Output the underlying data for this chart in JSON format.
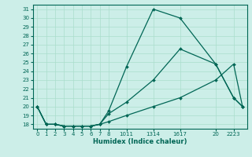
{
  "xlabel": "Humidex (Indice chaleur)",
  "bg_color": "#cceee8",
  "grid_color": "#aaddcc",
  "line_color": "#006655",
  "ylim": [
    17.5,
    31.5
  ],
  "xlim": [
    -0.5,
    23.5
  ],
  "yticks": [
    18,
    19,
    20,
    21,
    22,
    23,
    24,
    25,
    26,
    27,
    28,
    29,
    30,
    31
  ],
  "x_tick_positions": [
    0,
    1,
    2,
    3,
    4,
    5,
    6,
    7,
    8,
    10,
    13,
    16,
    20,
    22
  ],
  "x_tick_labels": [
    "0",
    "1",
    "2",
    "3",
    "4",
    "5",
    "6",
    "7",
    "8",
    "1011",
    "1314",
    "1617",
    "20",
    "2223"
  ],
  "line1_x": [
    0,
    1,
    2,
    3,
    4,
    5,
    6,
    7,
    8,
    10,
    13,
    16,
    20,
    22,
    23
  ],
  "line1_y": [
    20,
    18,
    18,
    17.8,
    17.8,
    17.8,
    17.8,
    18,
    19.5,
    24.5,
    31,
    30,
    24.8,
    21,
    20
  ],
  "line2_x": [
    0,
    1,
    2,
    3,
    4,
    5,
    6,
    7,
    8,
    10,
    13,
    16,
    20,
    22,
    23
  ],
  "line2_y": [
    20,
    18,
    18,
    17.8,
    17.8,
    17.8,
    17.8,
    18,
    19.2,
    20.5,
    23,
    26.5,
    24.8,
    21,
    20
  ],
  "line3_x": [
    0,
    1,
    2,
    3,
    4,
    5,
    6,
    7,
    8,
    10,
    13,
    16,
    20,
    22,
    23
  ],
  "line3_y": [
    20,
    18,
    18,
    17.8,
    17.8,
    17.8,
    17.8,
    18,
    18.3,
    19.0,
    20.0,
    21.0,
    23.0,
    24.8,
    20
  ]
}
